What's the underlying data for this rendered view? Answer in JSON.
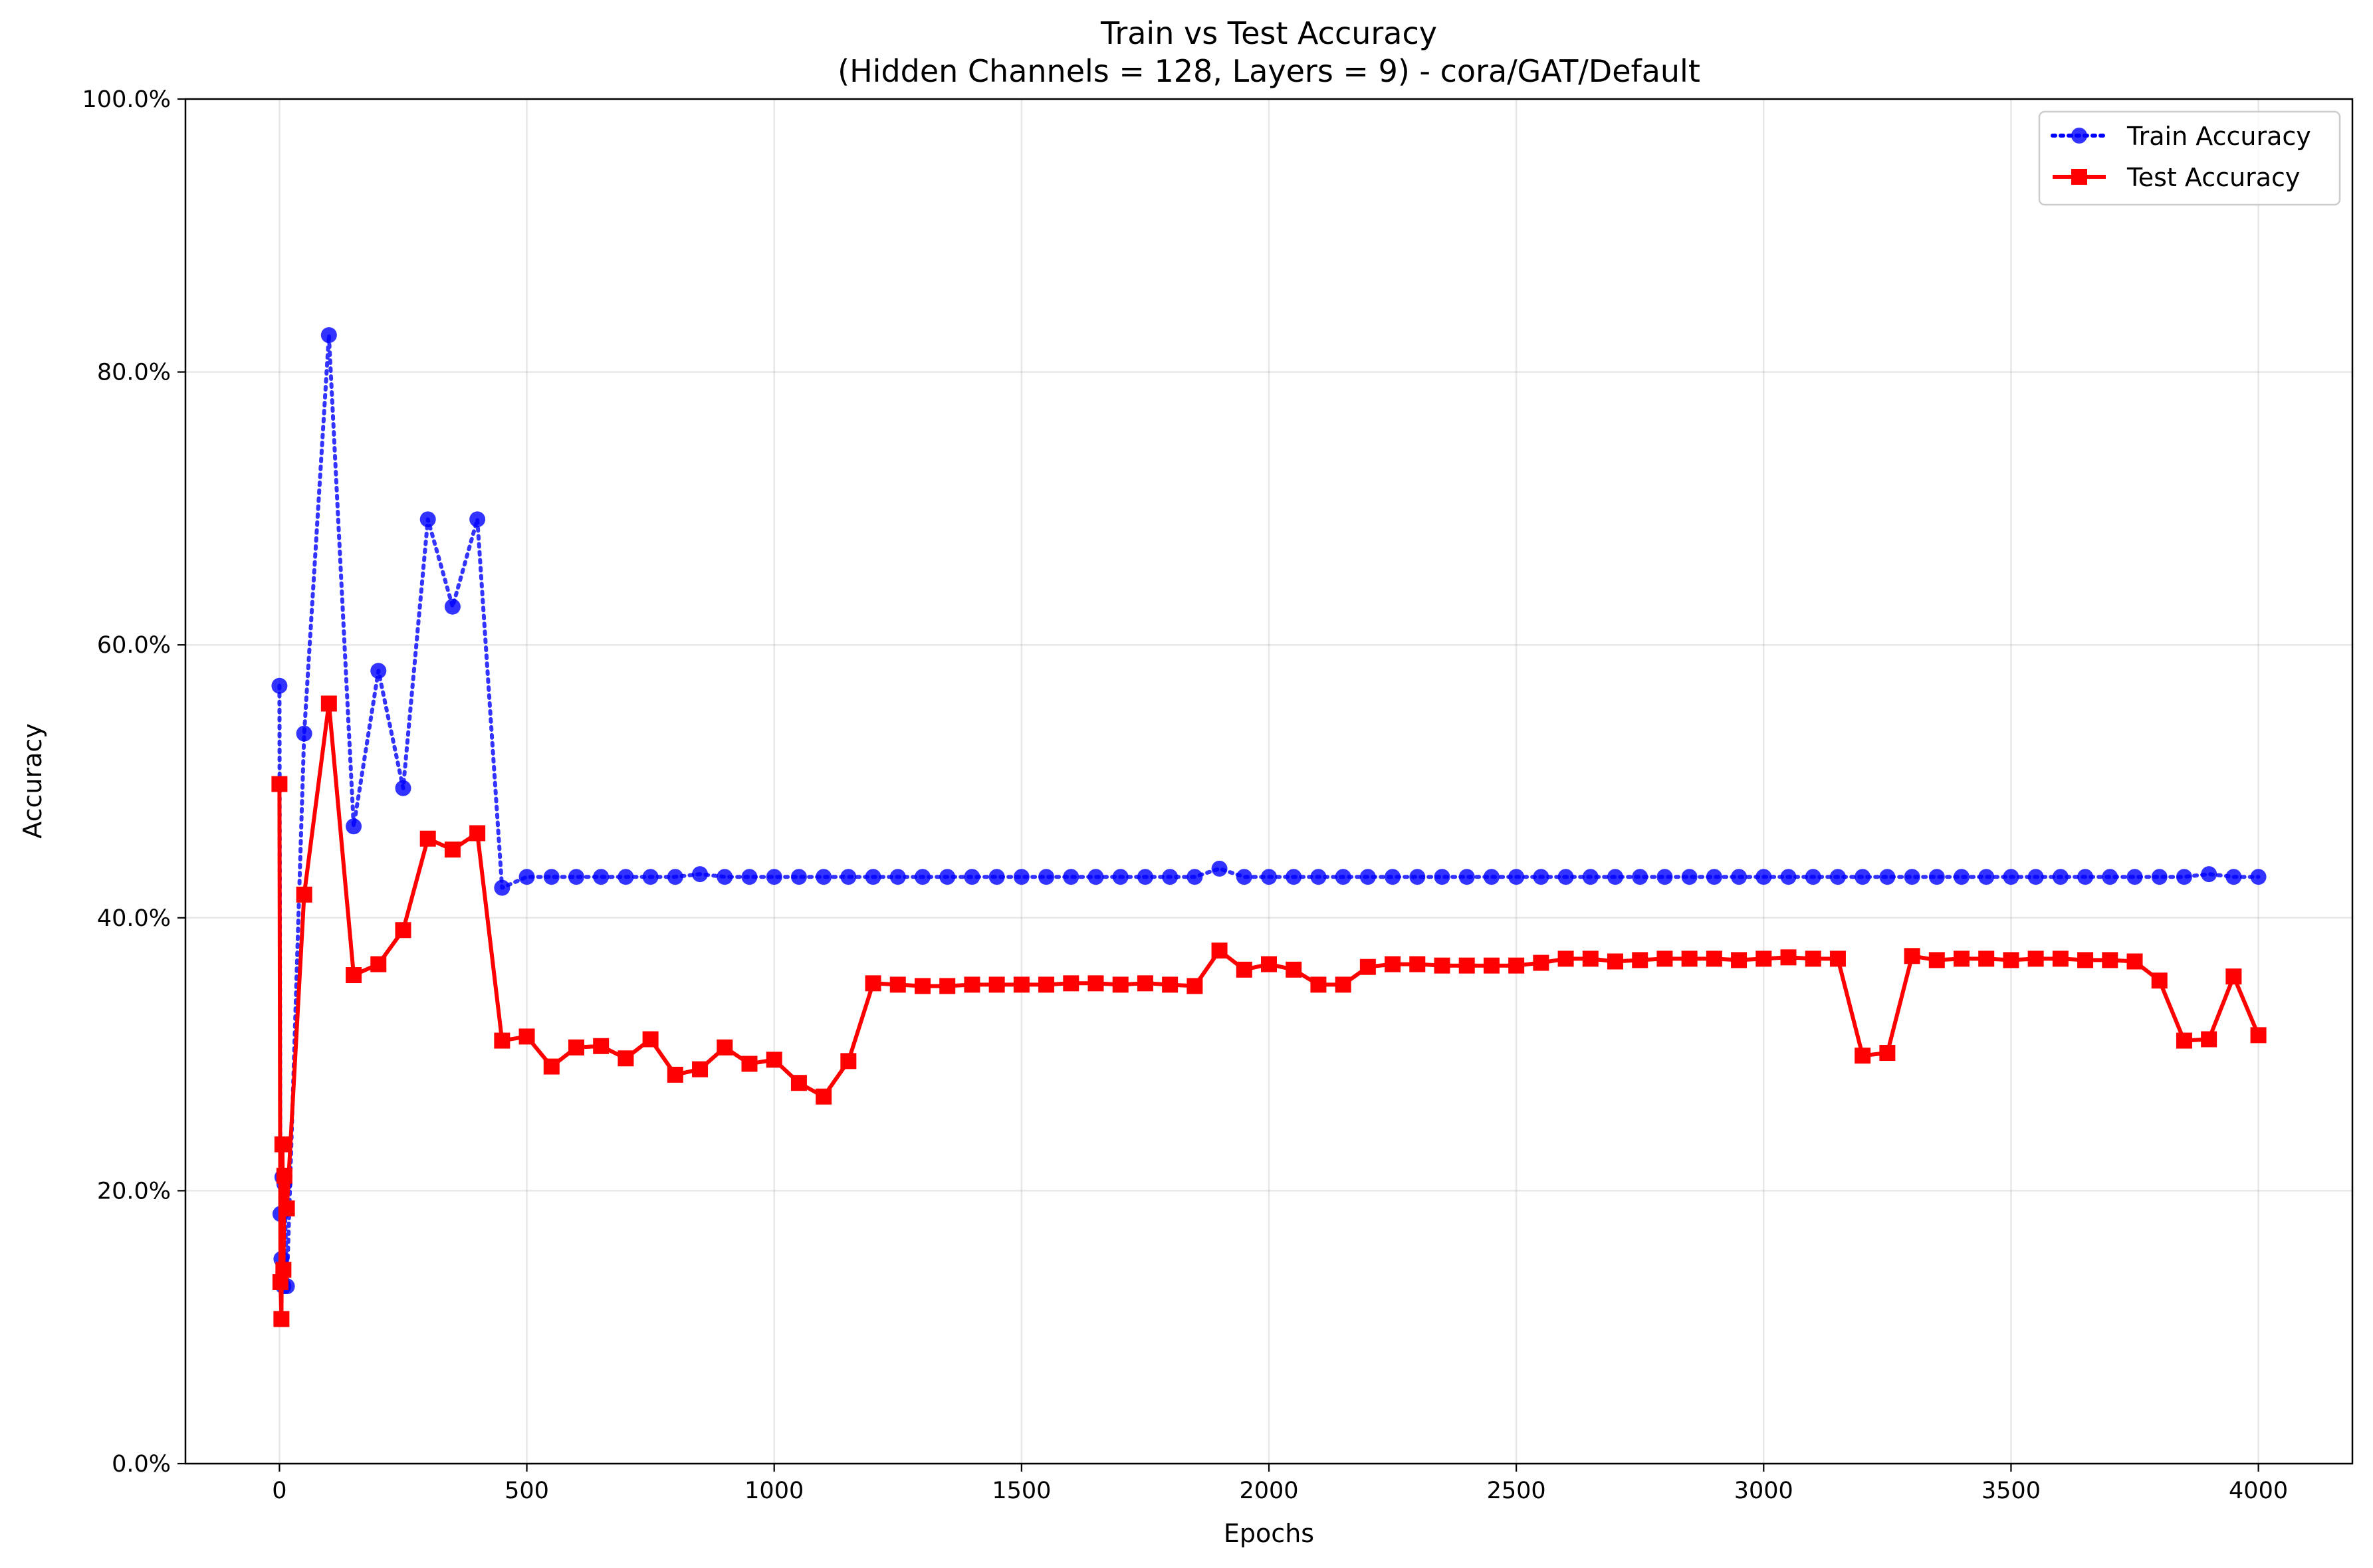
{
  "chart_data": {
    "type": "line",
    "title": "Train vs Test Accuracy",
    "subtitle": "(Hidden Channels = 128, Layers = 9) - cora/GAT/Default",
    "xlabel": "Epochs",
    "ylabel": "Accuracy",
    "xlim": [
      -190,
      4190
    ],
    "ylim": [
      0,
      100
    ],
    "x_ticks": [
      0,
      500,
      1000,
      1500,
      2000,
      2500,
      3000,
      3500,
      4000
    ],
    "x_tick_labels": [
      "0",
      "500",
      "1000",
      "1500",
      "2000",
      "2500",
      "3000",
      "3500",
      "4000"
    ],
    "y_ticks": [
      0,
      20,
      40,
      60,
      80,
      100
    ],
    "y_tick_labels": [
      "0.0%",
      "20.0%",
      "40.0%",
      "60.0%",
      "80.0%",
      "100.0%"
    ],
    "grid": true,
    "legend_position": "top-right",
    "series": [
      {
        "name": "Train Accuracy",
        "color": "#0000ff",
        "line_style": "dotted",
        "marker": "circle",
        "x": [
          0,
          2,
          4,
          6,
          8,
          10,
          15,
          50,
          100,
          150,
          200,
          250,
          300,
          350,
          400,
          450,
          500,
          550,
          600,
          650,
          700,
          750,
          800,
          850,
          900,
          950,
          1000,
          1050,
          1100,
          1150,
          1200,
          1250,
          1300,
          1350,
          1400,
          1450,
          1500,
          1550,
          1600,
          1650,
          1700,
          1750,
          1800,
          1850,
          1900,
          1950,
          2000,
          2050,
          2100,
          2150,
          2200,
          2250,
          2300,
          2350,
          2400,
          2450,
          2500,
          2550,
          2600,
          2650,
          2700,
          2750,
          2800,
          2850,
          2900,
          2950,
          3000,
          3050,
          3100,
          3150,
          3200,
          3250,
          3300,
          3350,
          3400,
          3450,
          3500,
          3550,
          3600,
          3650,
          3700,
          3750,
          3800,
          3850,
          3900,
          3950,
          4000
        ],
        "y": [
          57.0,
          18.3,
          15.0,
          21.0,
          13.0,
          20.5,
          13.0,
          53.5,
          82.7,
          46.7,
          58.1,
          49.5,
          69.2,
          62.8,
          69.2,
          42.2,
          43.0,
          43.0,
          43.0,
          43.0,
          43.0,
          43.0,
          43.0,
          43.2,
          43.0,
          43.0,
          43.0,
          43.0,
          43.0,
          43.0,
          43.0,
          43.0,
          43.0,
          43.0,
          43.0,
          43.0,
          43.0,
          43.0,
          43.0,
          43.0,
          43.0,
          43.0,
          43.0,
          43.0,
          43.6,
          43.0,
          43.0,
          43.0,
          43.0,
          43.0,
          43.0,
          43.0,
          43.0,
          43.0,
          43.0,
          43.0,
          43.0,
          43.0,
          43.0,
          43.0,
          43.0,
          43.0,
          43.0,
          43.0,
          43.0,
          43.0,
          43.0,
          43.0,
          43.0,
          43.0,
          43.0,
          43.0,
          43.0,
          43.0,
          43.0,
          43.0,
          43.0,
          43.0,
          43.0,
          43.0,
          43.0,
          43.0,
          43.0,
          43.0,
          43.2,
          43.0,
          43.0
        ]
      },
      {
        "name": "Test Accuracy",
        "color": "#ff0000",
        "line_style": "solid",
        "marker": "square",
        "x": [
          0,
          2,
          4,
          6,
          8,
          10,
          15,
          50,
          100,
          150,
          200,
          250,
          300,
          350,
          400,
          450,
          500,
          550,
          600,
          650,
          700,
          750,
          800,
          850,
          900,
          950,
          1000,
          1050,
          1100,
          1150,
          1200,
          1250,
          1300,
          1350,
          1400,
          1450,
          1500,
          1550,
          1600,
          1650,
          1700,
          1750,
          1800,
          1850,
          1900,
          1950,
          2000,
          2050,
          2100,
          2150,
          2200,
          2250,
          2300,
          2350,
          2400,
          2450,
          2500,
          2550,
          2600,
          2650,
          2700,
          2750,
          2800,
          2850,
          2900,
          2950,
          3000,
          3050,
          3100,
          3150,
          3200,
          3250,
          3300,
          3350,
          3400,
          3450,
          3500,
          3550,
          3600,
          3650,
          3700,
          3750,
          3800,
          3850,
          3900,
          3950,
          4000
        ],
        "y": [
          49.8,
          13.3,
          10.6,
          23.4,
          14.2,
          21.1,
          18.7,
          41.7,
          55.7,
          35.8,
          36.6,
          39.1,
          45.8,
          45.0,
          46.2,
          31.0,
          31.3,
          29.1,
          30.5,
          30.6,
          29.7,
          31.1,
          28.5,
          28.9,
          30.5,
          29.3,
          29.6,
          27.9,
          26.9,
          29.5,
          35.2,
          35.1,
          35.0,
          35.0,
          35.1,
          35.1,
          35.1,
          35.1,
          35.2,
          35.2,
          35.1,
          35.2,
          35.1,
          35.0,
          37.6,
          36.2,
          36.6,
          36.2,
          35.1,
          35.1,
          36.4,
          36.6,
          36.6,
          36.5,
          36.5,
          36.5,
          36.5,
          36.7,
          37.0,
          37.0,
          36.8,
          36.9,
          37.0,
          37.0,
          37.0,
          36.9,
          37.0,
          37.1,
          37.0,
          37.0,
          29.9,
          30.1,
          37.2,
          36.9,
          37.0,
          37.0,
          36.9,
          37.0,
          37.0,
          36.9,
          36.9,
          36.8,
          35.4,
          31.0,
          31.1,
          35.7,
          31.4
        ]
      }
    ]
  }
}
